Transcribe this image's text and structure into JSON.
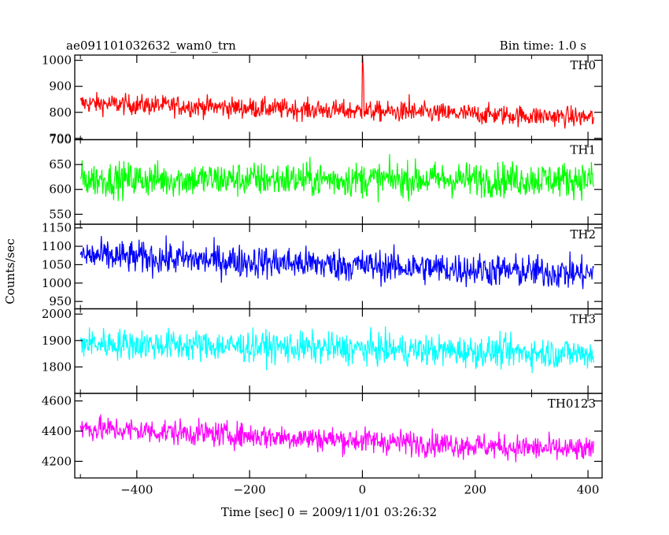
{
  "chart_data": {
    "type": "line",
    "title_left": "ae091101032632_wam0_trn",
    "title_right": "Bin time: 1.0 s",
    "xlabel": "Time [sec] 0 = 2009/11/01 03:26:32",
    "ylabel": "Counts/sec",
    "xlim": [
      -510,
      425
    ],
    "x_ticks": [
      -400,
      -200,
      0,
      200,
      400
    ],
    "x_range": [
      -500,
      410
    ],
    "grid": false,
    "panels": [
      {
        "name": "TH0",
        "color": "#ff0000",
        "ylim": [
          695,
          1020
        ],
        "y_ticks": [
          700,
          800,
          900,
          1000
        ],
        "level": {
          "x": [
            -500,
            410
          ],
          "y": [
            835,
            780
          ]
        },
        "noise": 28,
        "spikes": [
          {
            "x": 0,
            "y": 1025
          },
          {
            "x": 1,
            "y": 985
          },
          {
            "x": 2,
            "y": 940
          },
          {
            "x": 83,
            "y": 870
          }
        ]
      },
      {
        "name": "TH1",
        "color": "#00ff00",
        "ylim": [
          530,
          700
        ],
        "y_ticks": [
          550,
          600,
          650,
          700
        ],
        "level": {
          "x": [
            -500,
            410
          ],
          "y": [
            620,
            620
          ]
        },
        "noise": 25,
        "spikes": []
      },
      {
        "name": "TH2",
        "color": "#0000ff",
        "ylim": [
          930,
          1160
        ],
        "y_ticks": [
          950,
          1000,
          1050,
          1100,
          1150
        ],
        "level": {
          "x": [
            -500,
            410
          ],
          "y": [
            1075,
            1025
          ]
        },
        "noise": 32,
        "spikes": []
      },
      {
        "name": "TH3",
        "color": "#00ffff",
        "ylim": [
          1700,
          2020
        ],
        "y_ticks": [
          1800,
          1900,
          2000
        ],
        "level": {
          "x": [
            -500,
            410
          ],
          "y": [
            1890,
            1850
          ]
        },
        "noise": 42,
        "spikes": []
      },
      {
        "name": "TH0123",
        "color": "#ff00ff",
        "ylim": [
          4090,
          4650
        ],
        "y_ticks": [
          4200,
          4400,
          4600
        ],
        "level": {
          "x": [
            -500,
            410
          ],
          "y": [
            4420,
            4270
          ]
        },
        "noise": 60,
        "spikes": []
      }
    ]
  }
}
